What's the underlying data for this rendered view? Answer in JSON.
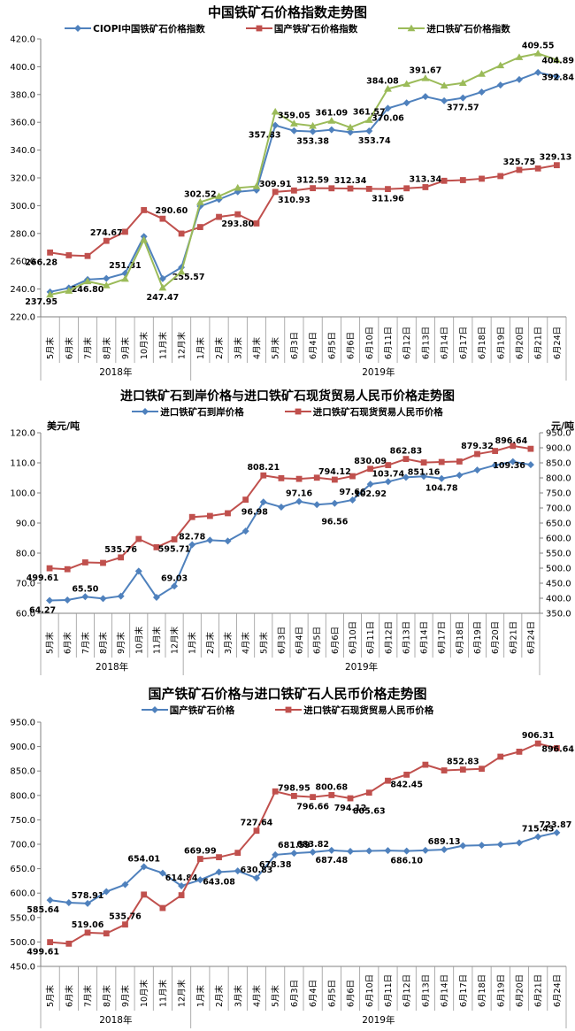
{
  "colors": {
    "blue": "#4F81BD",
    "red": "#C0504D",
    "green": "#9BBB59",
    "axis": "#808080",
    "grid_cell": "#999999",
    "label_text": "#000000"
  },
  "chart_data": [
    {
      "type": "line",
      "title": "中国铁矿石价格指数走势图",
      "y_axis": {
        "min": 220.0,
        "max": 420.0,
        "step": 20.0
      },
      "categories": [
        "5月末",
        "6月末",
        "7月末",
        "8月末",
        "9月末",
        "10月末",
        "11月末",
        "12月末",
        "1月末",
        "2月末",
        "3月末",
        "4月末",
        "5月末",
        "6月3日",
        "6月4日",
        "6月5日",
        "6月6日",
        "6月10日",
        "6月11日",
        "6月12日",
        "6月13日",
        "6月14日",
        "6月17日",
        "6月18日",
        "6月19日",
        "6月20日",
        "6月21日",
        "6月24日"
      ],
      "year_groups": [
        {
          "label": "2018年",
          "count": 8
        },
        {
          "label": "2019年",
          "count": 20
        }
      ],
      "series": [
        {
          "name": "CIOPI中国铁矿石价格指数",
          "color": "blue",
          "marker": "diamond",
          "axis": "left",
          "values": [
            237.95,
            240.8,
            246.8,
            247.6,
            251.31,
            277.8,
            247.47,
            255.57,
            299.6,
            304.5,
            310.0,
            311.2,
            357.83,
            353.9,
            353.38,
            354.6,
            352.8,
            353.74,
            370.06,
            374.0,
            378.5,
            375.5,
            377.57,
            381.8,
            386.8,
            390.8,
            395.9,
            392.84
          ],
          "labels": [
            [
              0,
              "below",
              -10
            ],
            [
              2,
              "below"
            ],
            [
              4,
              "above"
            ],
            [
              6,
              "below2"
            ],
            [
              7,
              "below",
              8
            ],
            [
              12,
              "below",
              -12
            ],
            [
              14,
              "below"
            ],
            [
              17,
              "below",
              6
            ],
            [
              18,
              "below"
            ],
            [
              22,
              "below"
            ],
            [
              27,
              "right"
            ]
          ]
        },
        {
          "name": "国产铁矿石价格指数",
          "color": "red",
          "marker": "square",
          "axis": "left",
          "values": [
            266.28,
            264.3,
            263.8,
            274.67,
            281.2,
            296.8,
            290.6,
            279.9,
            284.6,
            291.9,
            293.8,
            287.2,
            309.91,
            310.93,
            312.59,
            312.5,
            312.34,
            312.1,
            311.96,
            312.5,
            313.34,
            317.9,
            318.4,
            319.4,
            321.3,
            325.75,
            326.8,
            329.13
          ],
          "labels": [
            [
              0,
              "below",
              -10
            ],
            [
              3,
              "above"
            ],
            [
              6,
              "above",
              10
            ],
            [
              10,
              "below"
            ],
            [
              12,
              "above"
            ],
            [
              13,
              "below"
            ],
            [
              14,
              "above"
            ],
            [
              16,
              "above"
            ],
            [
              18,
              "below"
            ],
            [
              20,
              "above"
            ],
            [
              25,
              "above"
            ],
            [
              27,
              "above"
            ]
          ]
        },
        {
          "name": "进口铁矿石价格指数",
          "color": "green",
          "marker": "triangle",
          "axis": "left",
          "values": [
            235.9,
            238.7,
            245.5,
            242.6,
            247.3,
            275.3,
            240.9,
            252.4,
            302.52,
            306.8,
            312.8,
            313.9,
            367.6,
            359.05,
            357.4,
            361.09,
            356.3,
            361.57,
            384.08,
            387.6,
            391.67,
            386.4,
            388.3,
            394.8,
            400.9,
            406.8,
            409.55,
            404.89
          ],
          "labels": [
            [
              8,
              "above"
            ],
            [
              13,
              "above"
            ],
            [
              15,
              "above"
            ],
            [
              17,
              "above"
            ],
            [
              18,
              "above",
              -6
            ],
            [
              20,
              "above"
            ],
            [
              26,
              "above"
            ],
            [
              27,
              "right"
            ]
          ]
        }
      ]
    },
    {
      "type": "line",
      "title": "进口铁矿石到岸价格与进口铁矿石现货贸易人民币价格走势图",
      "y_axis": {
        "min": 60.0,
        "max": 120.0,
        "step": 10.0,
        "unit": "美元/吨"
      },
      "y2_axis": {
        "min": 350.0,
        "max": 950.0,
        "step": 50.0,
        "unit": "元/吨"
      },
      "categories": [
        "5月末",
        "6月末",
        "7月末",
        "8月末",
        "9月末",
        "10月末",
        "11月末",
        "12月末",
        "1月末",
        "2月末",
        "3月末",
        "4月末",
        "5月末",
        "6月3日",
        "6月4日",
        "6月5日",
        "6月6日",
        "6月10日",
        "6月11日",
        "6月12日",
        "6月13日",
        "6月14日",
        "6月17日",
        "6月18日",
        "6月19日",
        "6月20日",
        "6月21日",
        "6月24日"
      ],
      "year_groups": [
        {
          "label": "2018年",
          "count": 8
        },
        {
          "label": "2019年",
          "count": 20
        }
      ],
      "series": [
        {
          "name": "进口铁矿石到岸价格",
          "color": "blue",
          "marker": "diamond",
          "axis": "left",
          "values": [
            64.27,
            64.4,
            65.5,
            64.9,
            65.7,
            74.0,
            65.3,
            69.03,
            82.78,
            84.3,
            84.0,
            87.3,
            96.98,
            95.3,
            97.16,
            96.1,
            96.56,
            97.66,
            102.92,
            103.74,
            105.2,
            105.5,
            104.78,
            105.9,
            107.6,
            109.2,
            110.4,
            109.36
          ],
          "labels": [
            [
              0,
              "below",
              -8
            ],
            [
              2,
              "above"
            ],
            [
              7,
              "above"
            ],
            [
              8,
              "above"
            ],
            [
              12,
              "below",
              -10
            ],
            [
              14,
              "above"
            ],
            [
              16,
              "below2"
            ],
            [
              17,
              "above"
            ],
            [
              18,
              "below"
            ],
            [
              19,
              "above"
            ],
            [
              22,
              "below"
            ],
            [
              27,
              "left"
            ]
          ]
        },
        {
          "name": "进口铁矿石现货贸易人民币价格",
          "color": "red",
          "marker": "square",
          "axis": "right",
          "values": [
            499.61,
            496.5,
            519.06,
            517.5,
            535.76,
            597.0,
            569.5,
            595.71,
            669.99,
            673.5,
            682.5,
            727.64,
            808.21,
            798.95,
            796.66,
            800.68,
            794.12,
            805.63,
            830.09,
            842.45,
            862.83,
            851.16,
            852.83,
            854.5,
            879.32,
            889.5,
            906.31,
            896.64
          ],
          "labels": [
            [
              0,
              "below",
              -8
            ],
            [
              4,
              "above"
            ],
            [
              7,
              "below"
            ],
            [
              12,
              "above"
            ],
            [
              16,
              "above"
            ],
            [
              18,
              "above"
            ],
            [
              20,
              "above"
            ],
            [
              21,
              "below"
            ],
            [
              24,
              "above"
            ],
            [
              27,
              "above",
              -22
            ]
          ]
        }
      ]
    },
    {
      "type": "line",
      "title": "国产铁矿石价格与进口铁矿石人民币价格走势图",
      "y_axis": {
        "min": 450.0,
        "max": 950.0,
        "step": 50.0
      },
      "categories": [
        "5月末",
        "6月末",
        "7月末",
        "8月末",
        "9月末",
        "10月末",
        "11月末",
        "12月末",
        "1月末",
        "2月末",
        "3月末",
        "4月末",
        "5月末",
        "6月3日",
        "6月4日",
        "6月5日",
        "6月6日",
        "6月10日",
        "6月11日",
        "6月12日",
        "6月13日",
        "6月14日",
        "6月17日",
        "6月18日",
        "6月19日",
        "6月20日",
        "6月21日",
        "6月24日"
      ],
      "year_groups": [
        {
          "label": "2018年",
          "count": 8
        },
        {
          "label": "2019年",
          "count": 20
        }
      ],
      "series": [
        {
          "name": "国产铁矿石价格",
          "color": "blue",
          "marker": "diamond",
          "axis": "left",
          "values": [
            585.64,
            580.5,
            578.91,
            603.0,
            617.5,
            654.01,
            641.0,
            614.84,
            627.0,
            643.08,
            645.5,
            630.83,
            678.38,
            681.59,
            683.82,
            687.48,
            685.5,
            686.5,
            687.0,
            686.1,
            687.5,
            689.13,
            697.0,
            698.0,
            699.5,
            703.0,
            715.43,
            723.87
          ],
          "labels": [
            [
              0,
              "below",
              -8
            ],
            [
              2,
              "above"
            ],
            [
              5,
              "above"
            ],
            [
              7,
              "above"
            ],
            [
              9,
              "below"
            ],
            [
              11,
              "above"
            ],
            [
              12,
              "below"
            ],
            [
              13,
              "above"
            ],
            [
              14,
              "above"
            ],
            [
              15,
              "below"
            ],
            [
              19,
              "below"
            ],
            [
              21,
              "above"
            ],
            [
              26,
              "above"
            ],
            [
              27,
              "above"
            ]
          ]
        },
        {
          "name": "进口铁矿石现货贸易人民币价格",
          "color": "red",
          "marker": "square",
          "axis": "left",
          "values": [
            499.61,
            496.5,
            519.06,
            517.5,
            535.76,
            597.0,
            569.5,
            595.71,
            669.99,
            673.5,
            682.5,
            727.64,
            808.21,
            798.95,
            796.66,
            800.68,
            794.12,
            805.63,
            830.09,
            842.45,
            862.83,
            851.16,
            852.83,
            854.5,
            879.32,
            889.5,
            906.31,
            896.64
          ],
          "labels": [
            [
              0,
              "below",
              -8
            ],
            [
              2,
              "above"
            ],
            [
              4,
              "above"
            ],
            [
              8,
              "above"
            ],
            [
              11,
              "above"
            ],
            [
              13,
              "above"
            ],
            [
              14,
              "below"
            ],
            [
              15,
              "above"
            ],
            [
              16,
              "below"
            ],
            [
              17,
              "below2"
            ],
            [
              19,
              "below"
            ],
            [
              22,
              "above"
            ],
            [
              26,
              "above"
            ],
            [
              27,
              "right"
            ]
          ]
        }
      ]
    }
  ]
}
